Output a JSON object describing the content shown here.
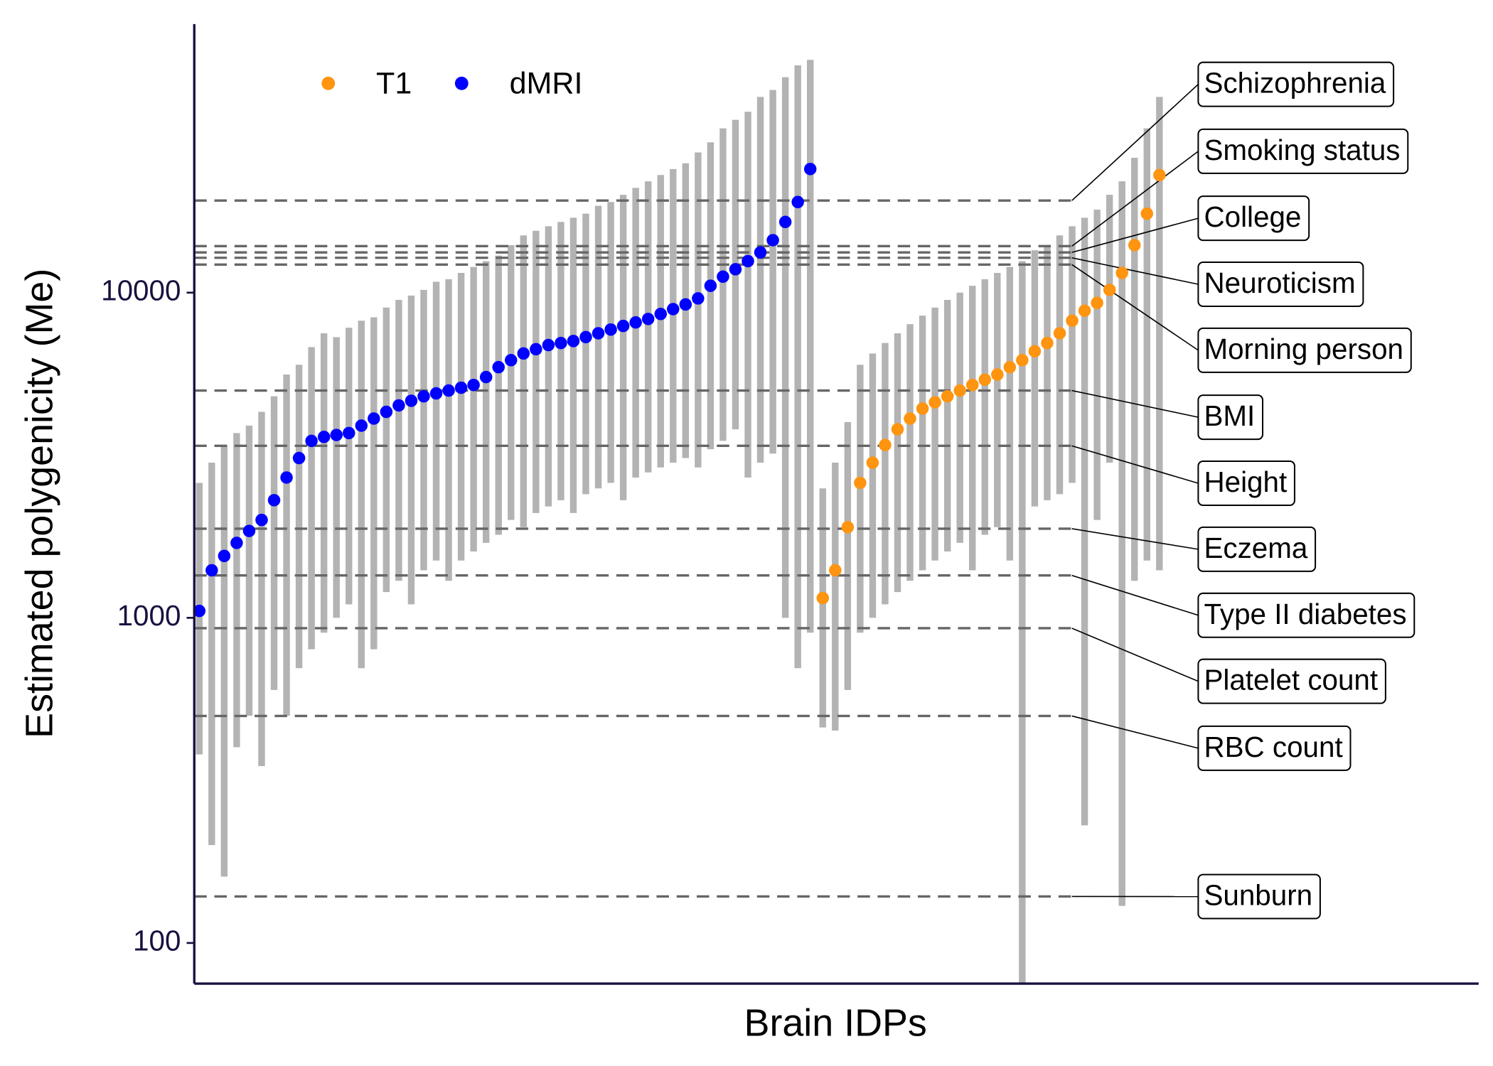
{
  "chart_data": {
    "type": "scatter",
    "x_label": "Brain IDPs",
    "y_label": "Estimated polygenicity (Me)",
    "ylog": true,
    "ylim": [
      75,
      67000
    ],
    "yticks": [
      100,
      1000,
      10000
    ],
    "xlim": [
      0,
      103
    ],
    "legend": "top-left",
    "errorbar_color": "#b3b3b3",
    "series": [
      {
        "name": "T1",
        "color": "#ff9410",
        "x": [
          50.4,
          51.4,
          52.4,
          53.4,
          54.4,
          55.4,
          56.4,
          57.4,
          58.4,
          59.4,
          60.4,
          61.4,
          62.4,
          63.4,
          64.4,
          65.4,
          66.4,
          67.4,
          68.4,
          69.4,
          70.4,
          71.4,
          72.4,
          73.4,
          74.4,
          75.4,
          76.4,
          77.4
        ],
        "values": [
          1150,
          1400,
          1900,
          2600,
          3000,
          3400,
          3800,
          4100,
          4400,
          4600,
          4800,
          5000,
          5200,
          5400,
          5600,
          5900,
          6200,
          6600,
          7000,
          7500,
          8200,
          8800,
          9300,
          10200,
          11500,
          14000,
          17500,
          23000
        ],
        "upper": [
          2500,
          3000,
          4000,
          6000,
          6500,
          7000,
          7500,
          8000,
          8500,
          9000,
          9500,
          10000,
          10500,
          11000,
          11500,
          12000,
          12500,
          13500,
          14000,
          15000,
          16000,
          17000,
          18000,
          20000,
          22000,
          26000,
          32000,
          40000
        ],
        "lower": [
          460,
          450,
          600,
          900,
          1000,
          1100,
          1200,
          1300,
          1400,
          1500,
          1600,
          1700,
          1400,
          1800,
          1900,
          1500,
          75,
          2200,
          2300,
          2400,
          2600,
          230,
          2000,
          3000,
          130,
          1300,
          1500,
          1400
        ]
      },
      {
        "name": "dMRI",
        "color": "#0000ff",
        "x": [
          0.4,
          1.4,
          2.4,
          3.4,
          4.4,
          5.4,
          6.4,
          7.4,
          8.4,
          9.4,
          10.4,
          11.4,
          12.4,
          13.4,
          14.4,
          15.4,
          16.4,
          17.4,
          18.4,
          19.4,
          20.4,
          21.4,
          22.4,
          23.4,
          24.4,
          25.4,
          26.4,
          27.4,
          28.4,
          29.4,
          30.4,
          31.4,
          32.4,
          33.4,
          34.4,
          35.4,
          36.4,
          37.4,
          38.4,
          39.4,
          40.4,
          41.4,
          42.4,
          43.4,
          44.4,
          45.4,
          46.4,
          47.4,
          48.4,
          49.4
        ],
        "values": [
          1050,
          1400,
          1550,
          1700,
          1850,
          2000,
          2300,
          2700,
          3100,
          3500,
          3600,
          3650,
          3700,
          3900,
          4100,
          4300,
          4500,
          4650,
          4800,
          4900,
          5000,
          5100,
          5200,
          5500,
          5900,
          6200,
          6500,
          6700,
          6900,
          7000,
          7100,
          7300,
          7500,
          7700,
          7900,
          8100,
          8300,
          8600,
          8900,
          9200,
          9600,
          10500,
          11200,
          11800,
          12500,
          13300,
          14500,
          16500,
          19000,
          24000
        ],
        "upper": [
          2600,
          3000,
          3400,
          3700,
          3900,
          4300,
          4800,
          5600,
          6000,
          6800,
          7500,
          7300,
          7800,
          8200,
          8400,
          9000,
          9500,
          9800,
          10200,
          10800,
          11000,
          11500,
          12000,
          12500,
          13000,
          14000,
          15000,
          15500,
          16000,
          16500,
          17000,
          17500,
          18500,
          19000,
          20000,
          21000,
          22000,
          23000,
          24000,
          25000,
          27000,
          29000,
          32000,
          34000,
          36000,
          40000,
          42000,
          46000,
          50000,
          52000
        ],
        "lower": [
          380,
          200,
          160,
          400,
          500,
          350,
          600,
          500,
          700,
          800,
          900,
          1000,
          1100,
          700,
          800,
          1200,
          1300,
          1100,
          1400,
          1500,
          1300,
          1500,
          1600,
          1700,
          1800,
          2000,
          1900,
          2100,
          2200,
          2300,
          2100,
          2400,
          2500,
          2600,
          2300,
          2700,
          2800,
          2900,
          3000,
          3100,
          2900,
          3300,
          3500,
          3800,
          2700,
          3000,
          3200,
          1000,
          700,
          900
        ]
      }
    ],
    "reference_lines": [
      {
        "label": "Schizophrenia",
        "value": 19200
      },
      {
        "label": "Smoking status",
        "value": 13900
      },
      {
        "label": "College",
        "value": 13300
      },
      {
        "label": "Neuroticism",
        "value": 12800
      },
      {
        "label": "Morning person",
        "value": 12200
      },
      {
        "label": "BMI",
        "value": 5000
      },
      {
        "label": "Height",
        "value": 3380
      },
      {
        "label": "Eczema",
        "value": 1880
      },
      {
        "label": "Type II diabetes",
        "value": 1350
      },
      {
        "label": "Platelet count",
        "value": 929
      },
      {
        "label": "RBC count",
        "value": 499
      },
      {
        "label": "Sunburn",
        "value": 139
      }
    ]
  }
}
